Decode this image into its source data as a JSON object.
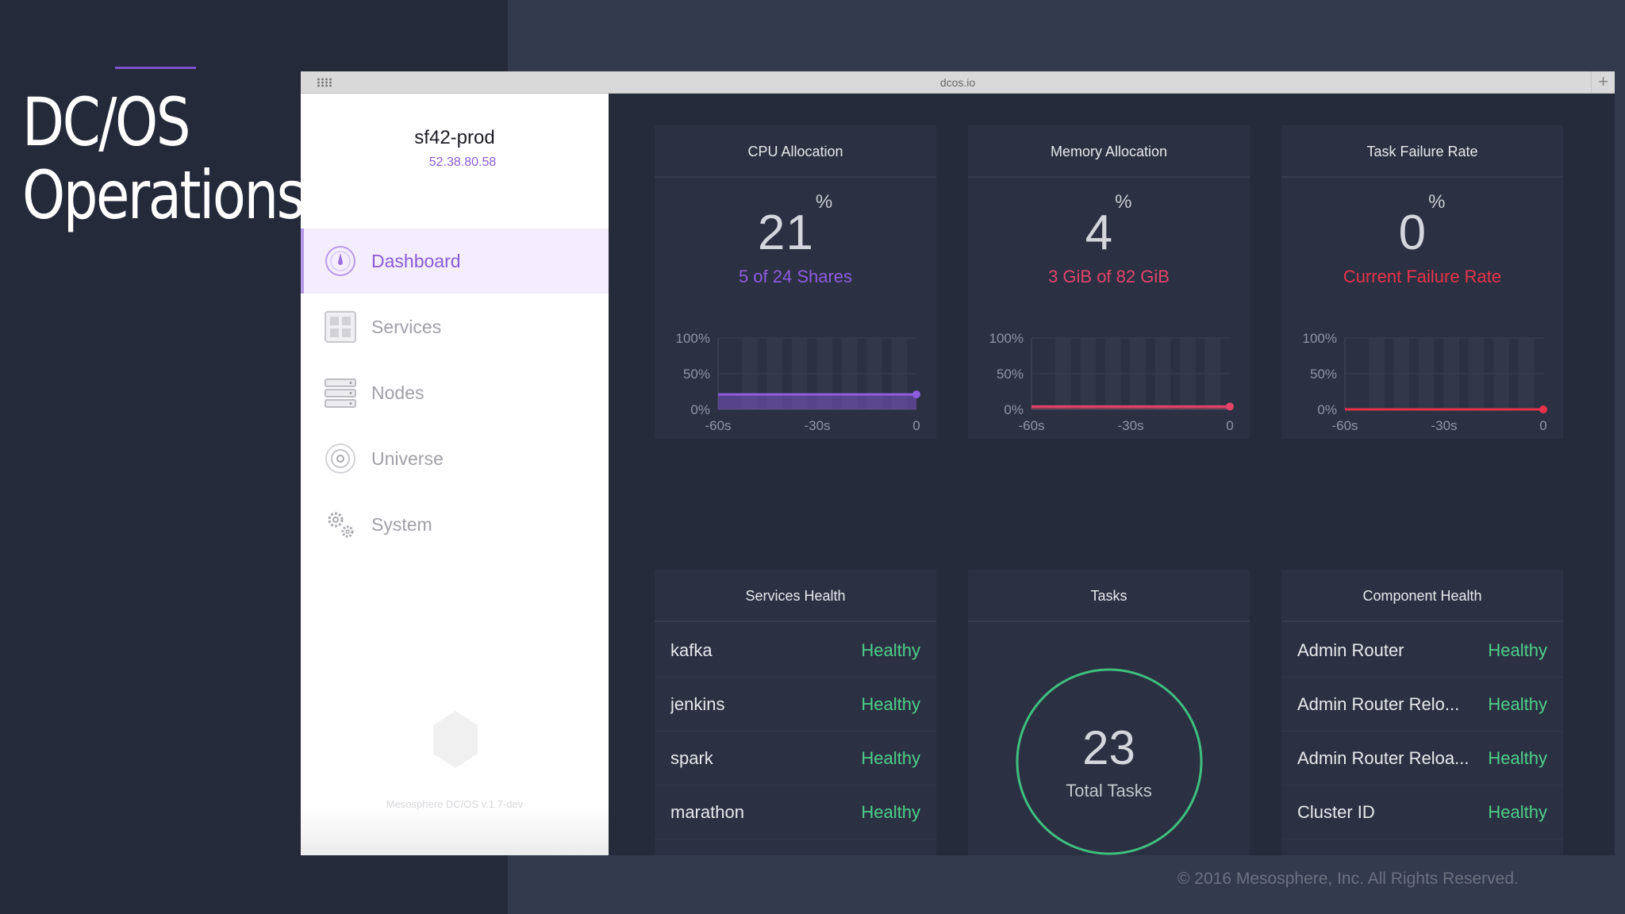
{
  "slide": {
    "title_line1": "DC/OS",
    "title_line2": "Operations",
    "copyright": "© 2016 Mesosphere, Inc. All Rights Reserved.",
    "accent_color": "#7b52c9"
  },
  "browser": {
    "url": "dcos.io",
    "new_tab": "+"
  },
  "sidebar": {
    "cluster_name": "sf42-prod",
    "cluster_ip": "52.38.80.58",
    "items": [
      {
        "label": "Dashboard",
        "icon": "dashboard-icon",
        "active": true
      },
      {
        "label": "Services",
        "icon": "services-icon",
        "active": false
      },
      {
        "label": "Nodes",
        "icon": "nodes-icon",
        "active": false
      },
      {
        "label": "Universe",
        "icon": "universe-icon",
        "active": false
      },
      {
        "label": "System",
        "icon": "gears-icon",
        "active": false
      }
    ],
    "version": "Mesosphere DC/OS v.1.7-dev"
  },
  "dashboard": {
    "cpu": {
      "title": "CPU Allocation",
      "value": "21",
      "unit": "%",
      "sub": "5 of 24 Shares",
      "color": "#8e5ce0"
    },
    "memory": {
      "title": "Memory Allocation",
      "value": "4",
      "unit": "%",
      "sub": "3 GiB of 82 GiB",
      "color": "#e2436b"
    },
    "failure": {
      "title": "Task Failure Rate",
      "value": "0",
      "unit": "%",
      "sub": "Current Failure Rate",
      "color": "#e8334a"
    },
    "services_health": {
      "title": "Services Health",
      "rows": [
        {
          "name": "kafka",
          "status": "Healthy"
        },
        {
          "name": "jenkins",
          "status": "Healthy"
        },
        {
          "name": "spark",
          "status": "Healthy"
        },
        {
          "name": "marathon",
          "status": "Healthy"
        }
      ]
    },
    "tasks": {
      "title": "Tasks",
      "count": "23",
      "label": "Total Tasks",
      "color": "#3fbf7f"
    },
    "component_health": {
      "title": "Component Health",
      "rows": [
        {
          "name": "Admin Router",
          "status": "Healthy"
        },
        {
          "name": "Admin Router Relo...",
          "status": "Healthy"
        },
        {
          "name": "Admin Router Reloa...",
          "status": "Healthy"
        },
        {
          "name": "Cluster ID",
          "status": "Healthy"
        }
      ]
    }
  },
  "chart_data": [
    {
      "type": "area",
      "title": "CPU Allocation",
      "x": [
        -60,
        0
      ],
      "values": [
        21,
        21
      ],
      "xticks": [
        "-60s",
        "-30s",
        "0"
      ],
      "yticks": [
        "100%",
        "50%",
        "0%"
      ],
      "ylim": [
        0,
        100
      ]
    },
    {
      "type": "area",
      "title": "Memory Allocation",
      "x": [
        -60,
        0
      ],
      "values": [
        4,
        4
      ],
      "xticks": [
        "-60s",
        "-30s",
        "0"
      ],
      "yticks": [
        "100%",
        "50%",
        "0%"
      ],
      "ylim": [
        0,
        100
      ]
    },
    {
      "type": "area",
      "title": "Task Failure Rate",
      "x": [
        -60,
        0
      ],
      "values": [
        0,
        0
      ],
      "xticks": [
        "-60s",
        "-30s",
        "0"
      ],
      "yticks": [
        "100%",
        "50%",
        "0%"
      ],
      "ylim": [
        0,
        100
      ]
    }
  ]
}
